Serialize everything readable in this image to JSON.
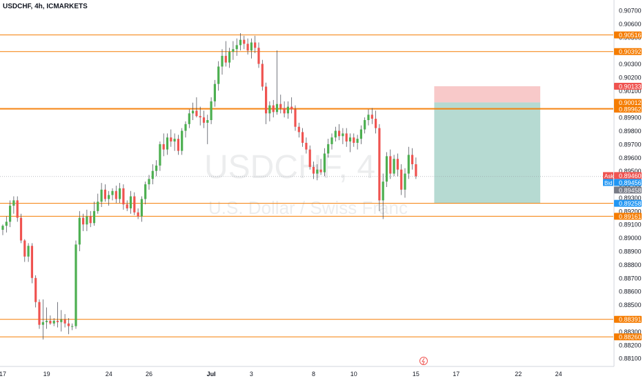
{
  "header": {
    "symbol_line": "USDCHF, 4h, ICMARKETS"
  },
  "watermark": {
    "title": "USDCHF, 4",
    "subtitle": "U.S. Dollar / Swiss Franc"
  },
  "colors": {
    "up": "#4caf50",
    "down": "#ef5350",
    "hline": "#f57c00",
    "stop_zone": "#f5b7b7",
    "target_zone": "#a9d4ca",
    "ask": "#ef5350",
    "bid": "#2196f3",
    "grey_tag": "#787b86"
  },
  "price_axis": {
    "ticks": [
      "0.90700",
      "0.90600",
      "0.90500",
      "0.90400",
      "0.90300",
      "0.90200",
      "0.90100",
      "0.90000",
      "0.89900",
      "0.89800",
      "0.89700",
      "0.89600",
      "0.89500",
      "0.89400",
      "0.89300",
      "0.89200",
      "0.89100",
      "0.89000",
      "0.88900",
      "0.88800",
      "0.88700",
      "0.88600",
      "0.88500",
      "0.88400",
      "0.88300",
      "0.88200",
      "0.88100"
    ]
  },
  "time_axis": {
    "labels": [
      {
        "text": "17",
        "bar": 0
      },
      {
        "text": "19",
        "bar": 12
      },
      {
        "text": "24",
        "bar": 29
      },
      {
        "text": "26",
        "bar": 40
      },
      {
        "text": "Jul",
        "bar": 57,
        "bold": true
      },
      {
        "text": "3",
        "bar": 68
      },
      {
        "text": "8",
        "bar": 85
      },
      {
        "text": "10",
        "bar": 96
      },
      {
        "text": "15",
        "bar": 113
      },
      {
        "text": "17",
        "bar": 124
      },
      {
        "text": "22",
        "bar": 141
      },
      {
        "text": "24",
        "bar": 152
      }
    ]
  },
  "horizontal_levels": [
    {
      "price": 0.90516,
      "label": "0.90516"
    },
    {
      "price": 0.90392,
      "label": "0.90392"
    },
    {
      "price": 0.89967,
      "label": "0.89967"
    },
    {
      "price": 0.89962,
      "label": "0.89962"
    },
    {
      "price": 0.89258,
      "label": "0.89258"
    },
    {
      "price": 0.89161,
      "label": "0.89161"
    },
    {
      "price": 0.88391,
      "label": "0.88391"
    },
    {
      "price": 0.8826,
      "label": "0.88260"
    }
  ],
  "position": {
    "entry": 0.90012,
    "stop": 0.90133,
    "target": 0.89258,
    "start_bar": 118,
    "end_bar": 147,
    "stop_label": "0.90133",
    "entry_label": "0.90012",
    "target_label": "0.89258"
  },
  "quote": {
    "ask_label": "Ask",
    "ask_value": "0.89460",
    "ask": 0.8946,
    "bid_label": "Bid",
    "bid_value": "0.89456",
    "last_value": "0.89458",
    "last": 0.89458
  },
  "chart_data": {
    "type": "candlestick",
    "title": "USDCHF, 4h, ICMARKETS",
    "price_range": [
      0.8808,
      0.9078
    ],
    "bars": [
      [
        0.8906,
        0.891,
        0.8902,
        0.8909
      ],
      [
        0.8909,
        0.8916,
        0.8904,
        0.8912
      ],
      [
        0.8912,
        0.8928,
        0.8908,
        0.8924
      ],
      [
        0.8924,
        0.8931,
        0.8918,
        0.8928
      ],
      [
        0.8928,
        0.8931,
        0.8912,
        0.8915
      ],
      [
        0.8915,
        0.8918,
        0.8896,
        0.8898
      ],
      [
        0.8898,
        0.8899,
        0.8882,
        0.8886
      ],
      [
        0.8886,
        0.8896,
        0.8882,
        0.8894
      ],
      [
        0.8894,
        0.8896,
        0.8866,
        0.887
      ],
      [
        0.887,
        0.8872,
        0.8848,
        0.8852
      ],
      [
        0.8852,
        0.8854,
        0.8832,
        0.8835
      ],
      [
        0.8835,
        0.8854,
        0.8824,
        0.8837
      ],
      [
        0.8837,
        0.8848,
        0.8832,
        0.8838
      ],
      [
        0.8838,
        0.8842,
        0.8835,
        0.8836
      ],
      [
        0.8836,
        0.884,
        0.8834,
        0.8838
      ],
      [
        0.8838,
        0.8852,
        0.8833,
        0.8837
      ],
      [
        0.8837,
        0.8846,
        0.883,
        0.8839
      ],
      [
        0.8839,
        0.8843,
        0.8833,
        0.8836
      ],
      [
        0.8836,
        0.884,
        0.8828,
        0.8834
      ],
      [
        0.8834,
        0.8836,
        0.8831,
        0.8834
      ],
      [
        0.8834,
        0.8898,
        0.8832,
        0.8895
      ],
      [
        0.8895,
        0.892,
        0.889,
        0.8915
      ],
      [
        0.8915,
        0.8918,
        0.8905,
        0.891
      ],
      [
        0.891,
        0.8921,
        0.8905,
        0.8916
      ],
      [
        0.8916,
        0.892,
        0.8908,
        0.8911
      ],
      [
        0.8911,
        0.8927,
        0.8909,
        0.892
      ],
      [
        0.892,
        0.8933,
        0.8918,
        0.8927
      ],
      [
        0.8927,
        0.8941,
        0.8923,
        0.8936
      ],
      [
        0.8936,
        0.894,
        0.8927,
        0.8929
      ],
      [
        0.8929,
        0.8935,
        0.8924,
        0.8932
      ],
      [
        0.8932,
        0.8937,
        0.8928,
        0.8935
      ],
      [
        0.8935,
        0.8939,
        0.8926,
        0.8929
      ],
      [
        0.8929,
        0.8941,
        0.8926,
        0.8937
      ],
      [
        0.8937,
        0.894,
        0.8921,
        0.8925
      ],
      [
        0.8925,
        0.8928,
        0.892,
        0.8922
      ],
      [
        0.8922,
        0.8935,
        0.8918,
        0.8931
      ],
      [
        0.8931,
        0.8934,
        0.8917,
        0.8919
      ],
      [
        0.8919,
        0.8922,
        0.8914,
        0.8916
      ],
      [
        0.8916,
        0.8931,
        0.8912,
        0.8929
      ],
      [
        0.8929,
        0.8942,
        0.8925,
        0.894
      ],
      [
        0.894,
        0.8947,
        0.8936,
        0.8944
      ],
      [
        0.8944,
        0.8955,
        0.894,
        0.895
      ],
      [
        0.895,
        0.8958,
        0.8946,
        0.8954
      ],
      [
        0.8954,
        0.8972,
        0.895,
        0.897
      ],
      [
        0.897,
        0.8978,
        0.8961,
        0.8966
      ],
      [
        0.8966,
        0.8978,
        0.8962,
        0.8975
      ],
      [
        0.8975,
        0.8981,
        0.8968,
        0.8972
      ],
      [
        0.8972,
        0.8978,
        0.8965,
        0.8974
      ],
      [
        0.8974,
        0.8977,
        0.8962,
        0.8965
      ],
      [
        0.8965,
        0.8982,
        0.8962,
        0.898
      ],
      [
        0.898,
        0.8987,
        0.8975,
        0.8985
      ],
      [
        0.8985,
        0.8996,
        0.8982,
        0.8993
      ],
      [
        0.8993,
        0.9001,
        0.8988,
        0.8995
      ],
      [
        0.8995,
        0.9005,
        0.899,
        0.8991
      ],
      [
        0.8991,
        0.8998,
        0.8984,
        0.899
      ],
      [
        0.899,
        0.8995,
        0.8982,
        0.8986
      ],
      [
        0.8986,
        0.8992,
        0.897,
        0.8988
      ],
      [
        0.8988,
        0.9005,
        0.8985,
        0.9002
      ],
      [
        0.9002,
        0.9018,
        0.8998,
        0.9015
      ],
      [
        0.9015,
        0.9032,
        0.901,
        0.9028
      ],
      [
        0.9028,
        0.9041,
        0.9022,
        0.9036
      ],
      [
        0.9036,
        0.9047,
        0.9028,
        0.9031
      ],
      [
        0.9031,
        0.9042,
        0.9027,
        0.9039
      ],
      [
        0.9039,
        0.9047,
        0.9033,
        0.9041
      ],
      [
        0.9041,
        0.9049,
        0.9036,
        0.9044
      ],
      [
        0.9044,
        0.9053,
        0.904,
        0.9048
      ],
      [
        0.9048,
        0.9051,
        0.9041,
        0.9045
      ],
      [
        0.9045,
        0.9049,
        0.9037,
        0.904
      ],
      [
        0.904,
        0.9049,
        0.9034,
        0.9046
      ],
      [
        0.9046,
        0.9051,
        0.9038,
        0.9042
      ],
      [
        0.9042,
        0.9046,
        0.9027,
        0.903
      ],
      [
        0.903,
        0.9033,
        0.901,
        0.9013
      ],
      [
        0.9013,
        0.9016,
        0.8985,
        0.8993
      ],
      [
        0.8993,
        0.9002,
        0.8987,
        0.8999
      ],
      [
        0.8999,
        0.9003,
        0.899,
        0.8994
      ],
      [
        0.8994,
        0.904,
        0.8992,
        0.9
      ],
      [
        0.9,
        0.9007,
        0.8993,
        0.8997
      ],
      [
        0.8997,
        0.9002,
        0.899,
        0.8993
      ],
      [
        0.8993,
        0.9002,
        0.8989,
        0.8998
      ],
      [
        0.8998,
        0.9005,
        0.8993,
        0.8996
      ],
      [
        0.8996,
        0.8999,
        0.898,
        0.8983
      ],
      [
        0.8983,
        0.8986,
        0.8975,
        0.8979
      ],
      [
        0.8979,
        0.8982,
        0.8968,
        0.8971
      ],
      [
        0.8971,
        0.8975,
        0.8963,
        0.8966
      ],
      [
        0.8966,
        0.8969,
        0.8951,
        0.8953
      ],
      [
        0.8953,
        0.8957,
        0.8944,
        0.8948
      ],
      [
        0.8948,
        0.8955,
        0.8943,
        0.8951
      ],
      [
        0.8951,
        0.8959,
        0.8947,
        0.8949
      ],
      [
        0.8949,
        0.8967,
        0.8946,
        0.8963
      ],
      [
        0.8963,
        0.8974,
        0.896,
        0.897
      ],
      [
        0.897,
        0.8978,
        0.8966,
        0.8975
      ],
      [
        0.8975,
        0.8983,
        0.8972,
        0.898
      ],
      [
        0.898,
        0.8985,
        0.8973,
        0.8976
      ],
      [
        0.8976,
        0.8982,
        0.897,
        0.8978
      ],
      [
        0.8978,
        0.8982,
        0.8968,
        0.8972
      ],
      [
        0.8972,
        0.8978,
        0.8964,
        0.8975
      ],
      [
        0.8975,
        0.8978,
        0.8968,
        0.8971
      ],
      [
        0.8971,
        0.8977,
        0.8966,
        0.8974
      ],
      [
        0.8974,
        0.8984,
        0.897,
        0.8981
      ],
      [
        0.8981,
        0.899,
        0.8978,
        0.8988
      ],
      [
        0.8988,
        0.8996,
        0.8984,
        0.8992
      ],
      [
        0.8992,
        0.8997,
        0.8985,
        0.8989
      ],
      [
        0.8989,
        0.8995,
        0.8978,
        0.8982
      ],
      [
        0.8982,
        0.8985,
        0.892,
        0.8928
      ],
      [
        0.8928,
        0.8948,
        0.8914,
        0.8942
      ],
      [
        0.8942,
        0.8964,
        0.8938,
        0.8961
      ],
      [
        0.8961,
        0.8966,
        0.8944,
        0.8948
      ],
      [
        0.8948,
        0.8962,
        0.8946,
        0.8959
      ],
      [
        0.8959,
        0.8963,
        0.8946,
        0.8951
      ],
      [
        0.8951,
        0.8955,
        0.8932,
        0.8936
      ],
      [
        0.8936,
        0.8952,
        0.893,
        0.8948
      ],
      [
        0.8948,
        0.8968,
        0.8944,
        0.8962
      ],
      [
        0.8962,
        0.8967,
        0.8951,
        0.8955
      ],
      [
        0.8955,
        0.896,
        0.8944,
        0.8946
      ]
    ]
  }
}
